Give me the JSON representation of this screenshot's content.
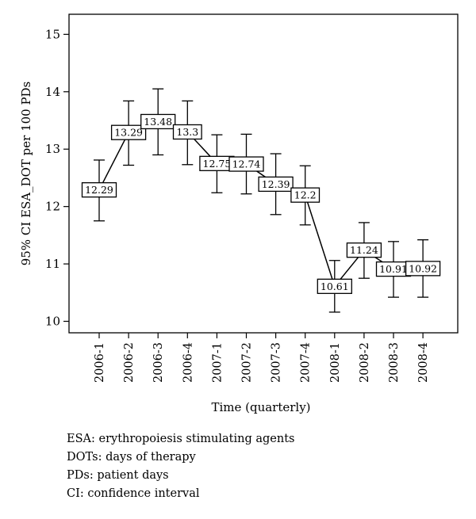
{
  "chart_data": {
    "type": "line",
    "title": "",
    "xlabel": "Time (quarterly)",
    "ylabel": "95% CI ESA_DOT per 100 PDs",
    "categories": [
      "2006-1",
      "2006-2",
      "2006-3",
      "2006-4",
      "2007-1",
      "2007-2",
      "2007-3",
      "2007-4",
      "2008-1",
      "2008-2",
      "2008-3",
      "2008-4"
    ],
    "values": [
      12.29,
      13.29,
      13.48,
      13.3,
      12.75,
      12.74,
      12.39,
      12.2,
      10.61,
      11.24,
      10.91,
      10.92
    ],
    "ci_lower": [
      11.75,
      12.72,
      12.9,
      12.73,
      12.24,
      12.22,
      11.86,
      11.68,
      10.16,
      10.75,
      10.42,
      10.42
    ],
    "ci_upper": [
      12.81,
      13.84,
      14.05,
      13.84,
      13.25,
      13.26,
      12.92,
      12.71,
      11.06,
      11.72,
      11.39,
      11.42
    ],
    "ylim": [
      9.8,
      15.35
    ],
    "yticks": [
      10,
      11,
      12,
      13,
      14,
      15
    ],
    "grid": false,
    "legend": "none"
  },
  "footnotes": [
    "ESA: erythropoiesis stimulating agents",
    "DOTs: days of therapy",
    "PDs: patient days",
    "CI: confidence interval"
  ]
}
